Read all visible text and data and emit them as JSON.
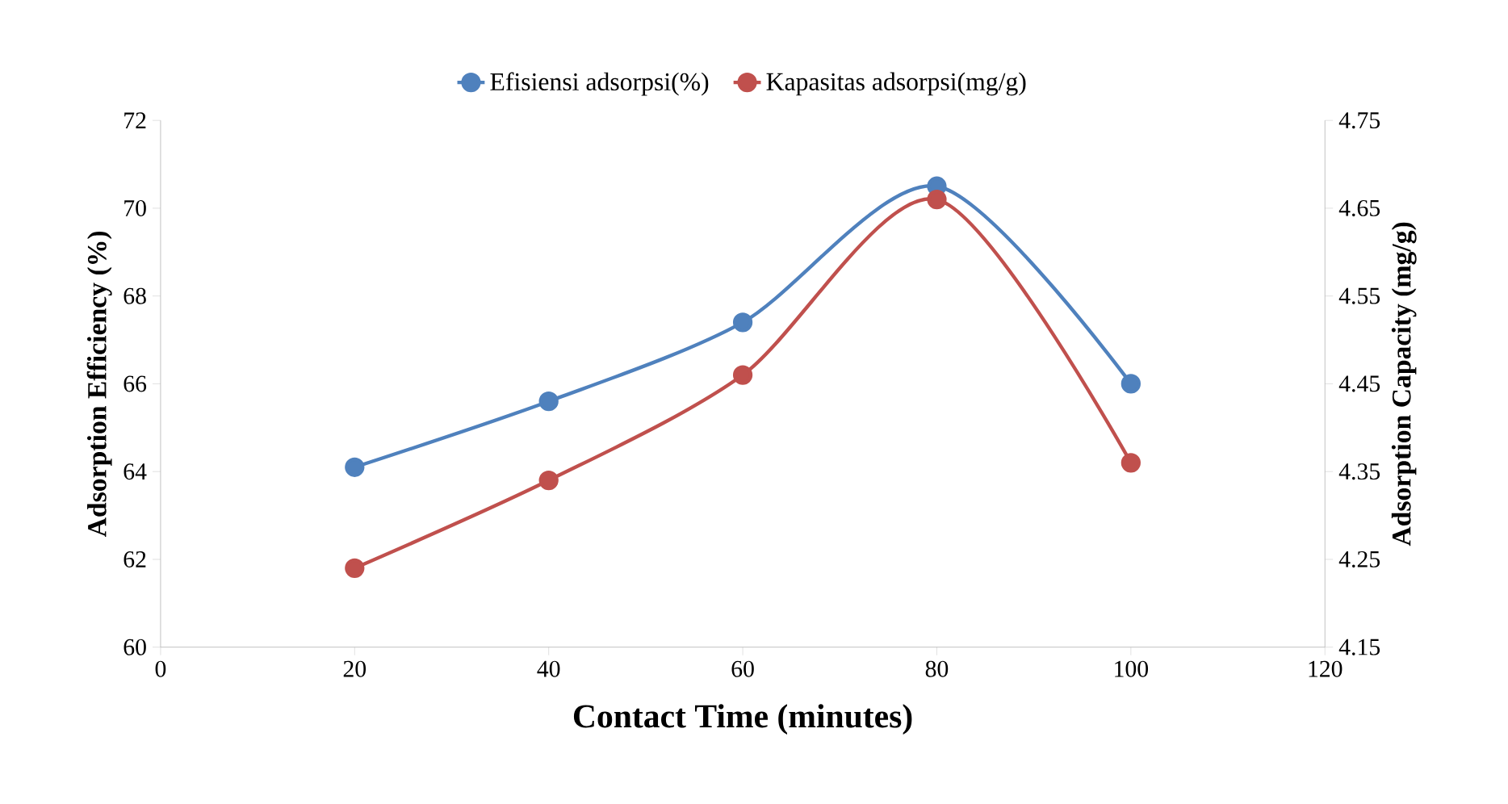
{
  "chart_data": {
    "type": "line",
    "xlabel": "Contact Time (minutes)",
    "ylabel": "Adsorption Efficiency (%)",
    "y2label": "Adsorption Capacity (mg/g)",
    "x": [
      20,
      40,
      60,
      80,
      100
    ],
    "xlim": [
      0,
      120
    ],
    "xticks": [
      0,
      20,
      40,
      60,
      80,
      100,
      120
    ],
    "ylim": [
      60,
      72
    ],
    "yticks": [
      60,
      62,
      64,
      66,
      68,
      70,
      72
    ],
    "y2lim": [
      4.15,
      4.75
    ],
    "y2ticks": [
      4.15,
      4.25,
      4.35,
      4.45,
      4.55,
      4.65,
      4.75
    ],
    "legend": "top",
    "marker": "circle",
    "line_style": "solid",
    "series": [
      {
        "name": "Efisiensi adsorpsi(%)",
        "color": "#4f81bd",
        "values": [
          64.1,
          65.6,
          67.4,
          70.5,
          66.0
        ]
      },
      {
        "name": "Kapasitas adsorpsi(mg/g)",
        "color": "#c0504d",
        "values": [
          4.24,
          4.34,
          4.46,
          4.66,
          4.36
        ],
        "axis": "y2"
      }
    ]
  }
}
